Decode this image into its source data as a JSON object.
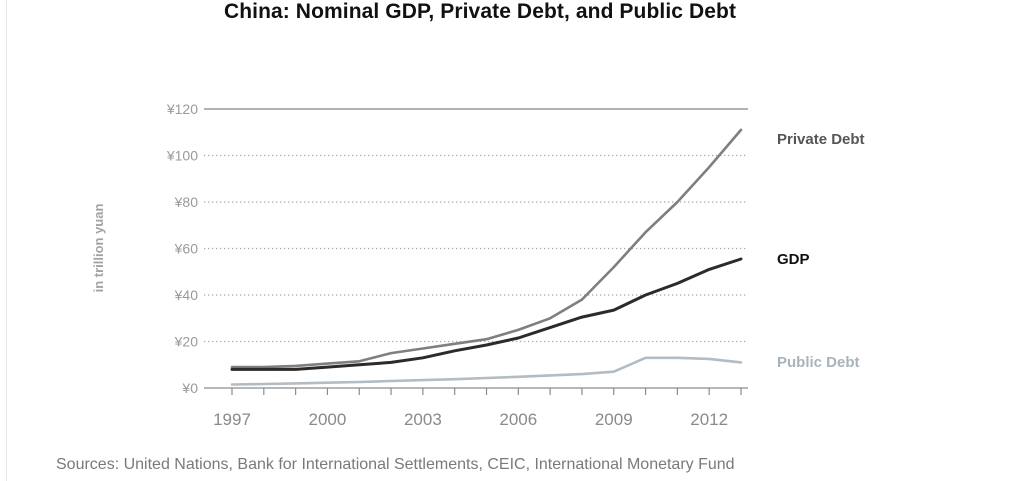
{
  "chart_data": {
    "type": "line",
    "title": "China: Nominal GDP, Private Debt, and Public Debt",
    "ylabel": "in trillion yuan",
    "xlabel": "",
    "xlim": [
      1997,
      2013
    ],
    "ylim": [
      0,
      120
    ],
    "yticks": [
      0,
      20,
      40,
      60,
      80,
      100,
      120
    ],
    "ytick_labels": [
      "¥0",
      "¥20",
      "¥40",
      "¥60",
      "¥80",
      "¥100",
      "¥120"
    ],
    "xticks": [
      1997,
      2000,
      2003,
      2006,
      2009,
      2012
    ],
    "xtick_labels": [
      "1997",
      "2000",
      "2003",
      "2006",
      "2009",
      "2012"
    ],
    "grid": "dotted horizontal",
    "series": [
      {
        "name": "Private Debt",
        "color": "#7f7f7f",
        "label_style": "bold",
        "x": [
          1997,
          1998,
          1999,
          2000,
          2001,
          2002,
          2003,
          2004,
          2005,
          2006,
          2007,
          2008,
          2009,
          2010,
          2011,
          2012,
          2013
        ],
        "y": [
          9,
          9,
          9.5,
          10.5,
          11.5,
          15,
          17,
          19,
          21,
          25,
          30,
          38,
          52,
          67,
          80,
          95,
          111
        ]
      },
      {
        "name": "GDP",
        "color": "#2b2b2b",
        "label_style": "bold",
        "x": [
          1997,
          1998,
          1999,
          2000,
          2001,
          2002,
          2003,
          2004,
          2005,
          2006,
          2007,
          2008,
          2009,
          2010,
          2011,
          2012,
          2013
        ],
        "y": [
          8,
          8,
          8,
          9,
          10,
          11,
          13,
          16,
          18.5,
          21.5,
          26,
          30.5,
          33.5,
          40,
          45,
          51,
          55.5
        ]
      },
      {
        "name": "Public Debt",
        "color": "#b3bcc2",
        "label_style": "normal",
        "x": [
          1997,
          1998,
          1999,
          2000,
          2001,
          2002,
          2003,
          2004,
          2005,
          2006,
          2007,
          2008,
          2009,
          2010,
          2011,
          2012,
          2013
        ],
        "y": [
          1.5,
          1.7,
          2,
          2.3,
          2.6,
          3,
          3.4,
          3.8,
          4.3,
          4.8,
          5.4,
          6,
          7,
          13,
          13,
          12.5,
          11
        ]
      }
    ],
    "source": "Sources: United Nations, Bank for International Settlements, CEIC, International Monetary Fund"
  }
}
